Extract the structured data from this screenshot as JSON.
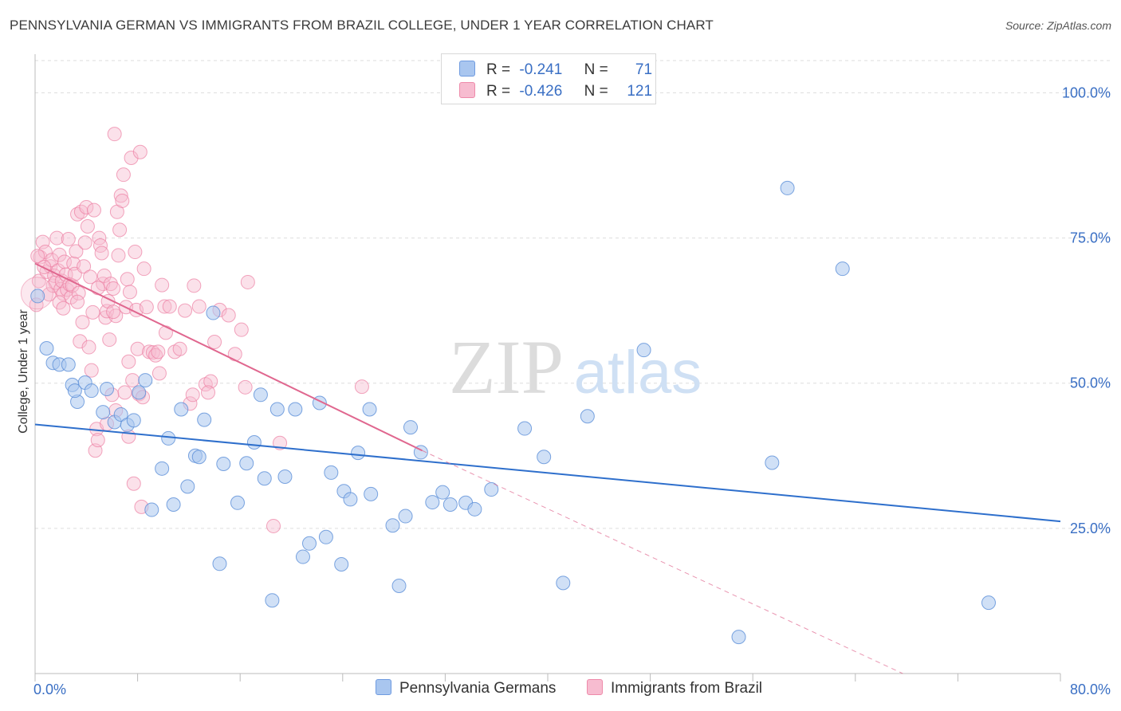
{
  "title": "PENNSYLVANIA GERMAN VS IMMIGRANTS FROM BRAZIL COLLEGE, UNDER 1 YEAR CORRELATION CHART",
  "source": "Source: ZipAtlas.com",
  "watermark": {
    "zip": "ZIP",
    "atlas": "atlas"
  },
  "legend": {
    "r_label": "R =",
    "n_label": "N =",
    "rows": [
      {
        "r": "-0.241",
        "n": "71",
        "color": "#a9c6ef",
        "border": "#6f9be0"
      },
      {
        "r": "-0.426",
        "n": "121",
        "color": "#f7bcd0",
        "border": "#ee8aaa"
      }
    ]
  },
  "colors": {
    "blue_fill": "#a9c6ef",
    "blue_stroke": "#5b8fd8",
    "blue_line": "#2e6fcc",
    "pink_fill": "#f7bcd0",
    "pink_stroke": "#ec7fa2",
    "pink_line": "#e0678f",
    "tick_label": "#3a6fc4",
    "grid": "#dddddd"
  },
  "chart_data": {
    "type": "scatter",
    "ylabel": "College, Under 1 year",
    "xlim": [
      0,
      80
    ],
    "ylim": [
      0,
      105
    ],
    "x_tick_labels": {
      "min": "0.0%",
      "max": "80.0%"
    },
    "y_ticks": [
      {
        "value": 25,
        "label": "25.0%"
      },
      {
        "value": 50,
        "label": "50.0%"
      },
      {
        "value": 75,
        "label": "75.0%"
      },
      {
        "value": 100,
        "label": "100.0%"
      }
    ],
    "series": [
      {
        "name": "Pennsylvania Germans",
        "trend": {
          "x0": 0,
          "y0": 42.9,
          "x1": 80,
          "y1": 26.2
        },
        "points": [
          [
            0.2,
            65
          ],
          [
            0.9,
            56
          ],
          [
            1.4,
            53.5
          ],
          [
            1.9,
            53.2
          ],
          [
            2.6,
            53.2
          ],
          [
            2.9,
            49.7
          ],
          [
            3.3,
            46.8
          ],
          [
            3.9,
            50.1
          ],
          [
            4.4,
            48.7
          ],
          [
            5.3,
            45
          ],
          [
            5.6,
            49
          ],
          [
            6.2,
            43.3
          ],
          [
            6.7,
            44.6
          ],
          [
            7.2,
            42.8
          ],
          [
            7.7,
            43.6
          ],
          [
            8.1,
            48.4
          ],
          [
            8.6,
            50.5
          ],
          [
            9.1,
            28.2
          ],
          [
            9.9,
            35.3
          ],
          [
            10.4,
            40.5
          ],
          [
            10.8,
            29.1
          ],
          [
            11.4,
            45.5
          ],
          [
            11.9,
            32.2
          ],
          [
            12.5,
            37.5
          ],
          [
            12.8,
            37.3
          ],
          [
            13.2,
            43.7
          ],
          [
            13.9,
            62.1
          ],
          [
            14.4,
            18.9
          ],
          [
            14.7,
            36.1
          ],
          [
            15.8,
            29.4
          ],
          [
            16.5,
            36.2
          ],
          [
            17.1,
            39.8
          ],
          [
            17.6,
            48
          ],
          [
            17.9,
            33.6
          ],
          [
            18.5,
            12.6
          ],
          [
            18.9,
            45.5
          ],
          [
            19.5,
            33.9
          ],
          [
            20.3,
            45.5
          ],
          [
            20.9,
            20.1
          ],
          [
            21.4,
            22.4
          ],
          [
            22.2,
            46.6
          ],
          [
            22.7,
            23.5
          ],
          [
            23.1,
            34.6
          ],
          [
            23.9,
            18.8
          ],
          [
            24.1,
            31.4
          ],
          [
            24.6,
            30
          ],
          [
            25.2,
            38
          ],
          [
            26.1,
            45.5
          ],
          [
            26.2,
            30.9
          ],
          [
            27.9,
            25.5
          ],
          [
            28.4,
            15.1
          ],
          [
            28.9,
            27.1
          ],
          [
            29.3,
            42.4
          ],
          [
            30.1,
            38.1
          ],
          [
            31,
            29.5
          ],
          [
            31.8,
            31.2
          ],
          [
            32.4,
            29.1
          ],
          [
            33.6,
            29.4
          ],
          [
            34.3,
            28.3
          ],
          [
            35.6,
            31.7
          ],
          [
            38.2,
            42.2
          ],
          [
            39.7,
            37.3
          ],
          [
            41.2,
            15.6
          ],
          [
            43.1,
            44.3
          ],
          [
            47.5,
            55.7
          ],
          [
            54.9,
            6.3
          ],
          [
            57.5,
            36.3
          ],
          [
            58.7,
            83.6
          ],
          [
            63,
            69.7
          ],
          [
            74.4,
            12.2
          ],
          [
            3.1,
            48.7
          ]
        ]
      },
      {
        "name": "Immigrants from Brazil",
        "trend": {
          "x0": 0,
          "y0": 70.6,
          "x1": 30.2,
          "y1": 38.4,
          "dash_x1": 67.7,
          "dash_y1": 0
        },
        "points": [
          [
            0.1,
            63.5
          ],
          [
            0.3,
            67.6
          ],
          [
            0.4,
            71.7
          ],
          [
            0.6,
            74.3
          ],
          [
            0.8,
            72.6
          ],
          [
            0.9,
            69.2
          ],
          [
            1.1,
            65.3
          ],
          [
            1.2,
            70.1
          ],
          [
            1.3,
            71.2
          ],
          [
            1.4,
            66.8
          ],
          [
            1.5,
            68.5
          ],
          [
            1.6,
            67.3
          ],
          [
            1.7,
            75
          ],
          [
            1.8,
            69.4
          ],
          [
            1.9,
            72.1
          ],
          [
            2,
            66.2
          ],
          [
            2.1,
            67.6
          ],
          [
            2.2,
            65.4
          ],
          [
            2.3,
            70.9
          ],
          [
            2.4,
            68.7
          ],
          [
            2.5,
            66.1
          ],
          [
            2.6,
            74.8
          ],
          [
            2.7,
            67
          ],
          [
            2.8,
            64.8
          ],
          [
            2.9,
            66.8
          ],
          [
            3,
            70.6
          ],
          [
            3.1,
            68.8
          ],
          [
            3.2,
            72.7
          ],
          [
            3.3,
            79.1
          ],
          [
            3.4,
            65.5
          ],
          [
            3.5,
            57.2
          ],
          [
            3.6,
            79.5
          ],
          [
            3.7,
            60.5
          ],
          [
            3.8,
            70.1
          ],
          [
            3.9,
            74.2
          ],
          [
            4,
            80.3
          ],
          [
            4.1,
            77
          ],
          [
            4.2,
            56.2
          ],
          [
            4.3,
            68.3
          ],
          [
            4.4,
            52.2
          ],
          [
            4.5,
            62.2
          ],
          [
            4.6,
            79.8
          ],
          [
            4.7,
            38.4
          ],
          [
            4.8,
            42.1
          ],
          [
            4.9,
            40.2
          ],
          [
            5,
            75
          ],
          [
            5.1,
            73.7
          ],
          [
            5.2,
            72.4
          ],
          [
            5.3,
            67.1
          ],
          [
            5.4,
            68.5
          ],
          [
            5.5,
            61.3
          ],
          [
            5.6,
            62.4
          ],
          [
            5.7,
            64.1
          ],
          [
            5.8,
            57.5
          ],
          [
            5.9,
            67.1
          ],
          [
            6,
            48
          ],
          [
            6.1,
            66.3
          ],
          [
            6.2,
            92.9
          ],
          [
            6.3,
            61.6
          ],
          [
            6.4,
            79.5
          ],
          [
            6.5,
            72
          ],
          [
            6.6,
            76.4
          ],
          [
            6.7,
            82.3
          ],
          [
            6.8,
            81.4
          ],
          [
            6.9,
            85.9
          ],
          [
            7,
            48.4
          ],
          [
            7.1,
            63.1
          ],
          [
            7.2,
            67.9
          ],
          [
            7.3,
            40.8
          ],
          [
            7.4,
            65.7
          ],
          [
            7.5,
            88.8
          ],
          [
            7.6,
            50.5
          ],
          [
            7.7,
            32.7
          ],
          [
            7.8,
            72.6
          ],
          [
            7.9,
            62.6
          ],
          [
            8,
            55.9
          ],
          [
            8.1,
            48.1
          ],
          [
            8.2,
            89.8
          ],
          [
            8.3,
            28.7
          ],
          [
            8.5,
            69.7
          ],
          [
            8.7,
            63.1
          ],
          [
            8.9,
            55.4
          ],
          [
            9.2,
            55.3
          ],
          [
            9.4,
            54.8
          ],
          [
            9.7,
            51.7
          ],
          [
            9.9,
            66.9
          ],
          [
            10.1,
            63.2
          ],
          [
            10.5,
            63.2
          ],
          [
            10.9,
            55.4
          ],
          [
            11.3,
            55.9
          ],
          [
            11.7,
            62.5
          ],
          [
            12.1,
            46.5
          ],
          [
            12.4,
            66.8
          ],
          [
            12.8,
            63.2
          ],
          [
            13.3,
            49.8
          ],
          [
            13.7,
            50.3
          ],
          [
            14,
            57.1
          ],
          [
            14.4,
            62.6
          ],
          [
            15.1,
            61.7
          ],
          [
            15.6,
            55
          ],
          [
            16.1,
            59.2
          ],
          [
            16.6,
            67.4
          ],
          [
            18.6,
            25.4
          ],
          [
            19.1,
            39.7
          ],
          [
            25.5,
            49.4
          ],
          [
            0.2,
            71.9
          ],
          [
            0.7,
            70
          ],
          [
            1.9,
            63.9
          ],
          [
            2.2,
            62.9
          ],
          [
            3.3,
            64
          ],
          [
            4.9,
            66.4
          ],
          [
            5.6,
            43
          ],
          [
            6.3,
            45.3
          ],
          [
            7.3,
            53.7
          ],
          [
            8.4,
            47.6
          ],
          [
            9.6,
            55.4
          ],
          [
            10.2,
            58.7
          ],
          [
            12.3,
            48
          ],
          [
            13.5,
            48.4
          ],
          [
            16.4,
            49.3
          ],
          [
            6.1,
            62.3
          ]
        ]
      }
    ]
  }
}
